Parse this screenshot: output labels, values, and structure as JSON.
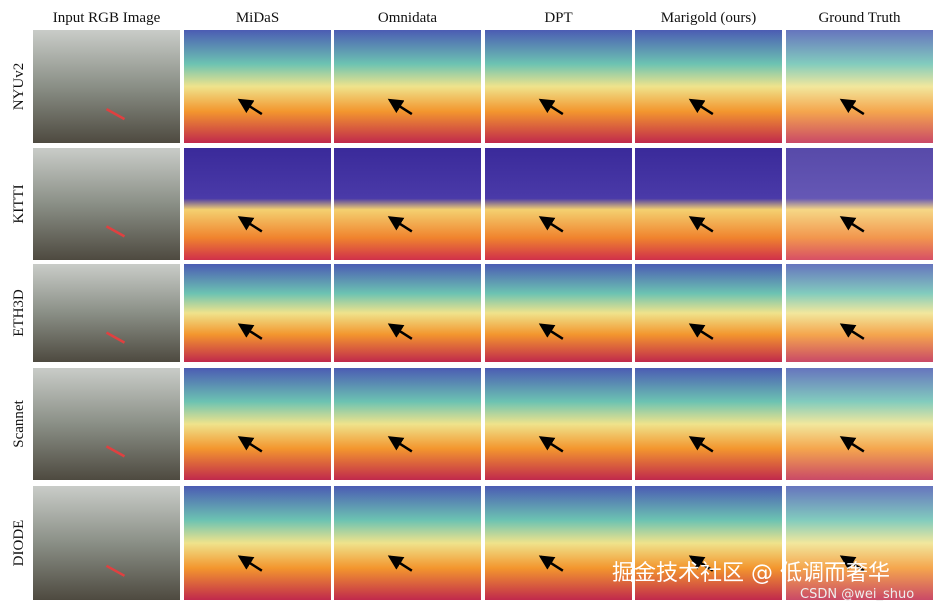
{
  "columns": [
    "Input RGB Image",
    "MiDaS",
    "Omnidata",
    "DPT",
    "Marigold (ours)",
    "Ground Truth"
  ],
  "rows": [
    "NYUv2",
    "KITTI",
    "ETH3D",
    "Scannet",
    "DIODE"
  ],
  "watermark": {
    "text": "掘金技术社区 @ 低调而奢华",
    "credit": "CSDN @wei_shuo"
  }
}
